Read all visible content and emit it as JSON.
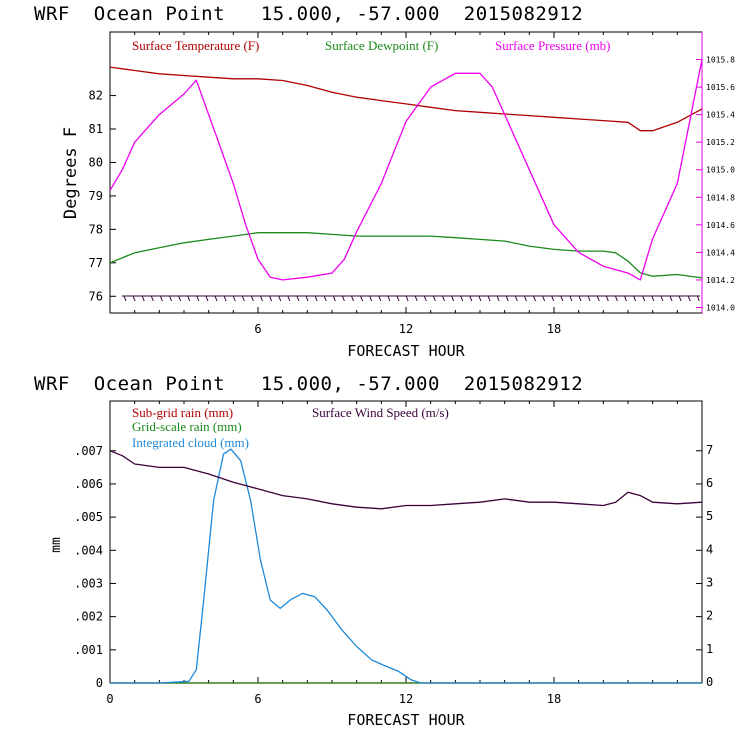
{
  "panels": [
    {
      "title": "WRF  Ocean Point   15.000, -57.000  2015082912"
    },
    {
      "title": "WRF  Ocean Point   15.000, -57.000  2015082912"
    }
  ],
  "chart_data": [
    {
      "type": "line",
      "title": "WRF  Ocean Point   15.000, -57.000  2015082912",
      "xlabel": "FORECAST HOUR",
      "ylabel": "Degrees F",
      "xlim": [
        0,
        24
      ],
      "ylim": [
        75.5,
        83.9
      ],
      "x_ticks": [
        "6",
        "12",
        "18"
      ],
      "y_ticks": [
        "76",
        "77",
        "78",
        "79",
        "80",
        "81",
        "82"
      ],
      "y2lim": [
        1013.96,
        1016.0
      ],
      "y2_ticks": [
        "1014.0",
        "1014.2",
        "1014.4",
        "1014.6",
        "1014.8",
        "1015.0",
        "1015.2",
        "1015.4",
        "1015.6",
        "1015.8"
      ],
      "legend_position": "top",
      "series": [
        {
          "name": "Surface Temperature (F)",
          "color": "#b00000",
          "axis": "left",
          "points": [
            [
              0,
              82.85
            ],
            [
              1,
              82.75
            ],
            [
              2,
              82.65
            ],
            [
              3,
              82.6
            ],
            [
              4,
              82.55
            ],
            [
              5,
              82.5
            ],
            [
              6,
              82.5
            ],
            [
              7,
              82.45
            ],
            [
              8,
              82.3
            ],
            [
              9,
              82.1
            ],
            [
              10,
              81.95
            ],
            [
              11,
              81.85
            ],
            [
              12,
              81.75
            ],
            [
              13,
              81.65
            ],
            [
              14,
              81.55
            ],
            [
              15,
              81.5
            ],
            [
              16,
              81.45
            ],
            [
              17,
              81.4
            ],
            [
              18,
              81.35
            ],
            [
              19,
              81.3
            ],
            [
              20,
              81.25
            ],
            [
              21,
              81.2
            ],
            [
              21.5,
              80.95
            ],
            [
              22,
              80.95
            ],
            [
              23,
              81.2
            ],
            [
              24,
              81.6
            ]
          ]
        },
        {
          "name": "Surface Dewpoint (F)",
          "color": "#1a8a1a",
          "axis": "left",
          "points": [
            [
              0,
              77.0
            ],
            [
              1,
              77.3
            ],
            [
              2,
              77.45
            ],
            [
              3,
              77.6
            ],
            [
              4,
              77.7
            ],
            [
              5,
              77.8
            ],
            [
              6,
              77.9
            ],
            [
              7,
              77.9
            ],
            [
              8,
              77.9
            ],
            [
              9,
              77.85
            ],
            [
              10,
              77.8
            ],
            [
              11,
              77.8
            ],
            [
              12,
              77.8
            ],
            [
              13,
              77.8
            ],
            [
              14,
              77.75
            ],
            [
              15,
              77.7
            ],
            [
              16,
              77.65
            ],
            [
              17,
              77.5
            ],
            [
              18,
              77.4
            ],
            [
              19,
              77.35
            ],
            [
              20,
              77.35
            ],
            [
              20.5,
              77.3
            ],
            [
              21,
              77.05
            ],
            [
              21.5,
              76.7
            ],
            [
              22,
              76.6
            ],
            [
              23,
              76.65
            ],
            [
              24,
              76.55
            ]
          ]
        },
        {
          "name": "Surface Pressure (mb)",
          "color": "#ee00ee",
          "axis": "right",
          "points": [
            [
              0,
              1014.85
            ],
            [
              0.5,
              1015.0
            ],
            [
              1,
              1015.2
            ],
            [
              2,
              1015.4
            ],
            [
              3,
              1015.55
            ],
            [
              3.5,
              1015.65
            ],
            [
              4,
              1015.4
            ],
            [
              4.5,
              1015.15
            ],
            [
              5,
              1014.9
            ],
            [
              5.5,
              1014.6
            ],
            [
              6,
              1014.35
            ],
            [
              6.5,
              1014.22
            ],
            [
              7,
              1014.2
            ],
            [
              8,
              1014.22
            ],
            [
              9,
              1014.25
            ],
            [
              9.5,
              1014.35
            ],
            [
              10,
              1014.55
            ],
            [
              11,
              1014.9
            ],
            [
              12,
              1015.35
            ],
            [
              13,
              1015.6
            ],
            [
              14,
              1015.7
            ],
            [
              15,
              1015.7
            ],
            [
              15.5,
              1015.6
            ],
            [
              16,
              1015.4
            ],
            [
              17,
              1015.0
            ],
            [
              18,
              1014.6
            ],
            [
              19,
              1014.4
            ],
            [
              20,
              1014.3
            ],
            [
              21,
              1014.25
            ],
            [
              21.5,
              1014.2
            ],
            [
              22,
              1014.5
            ],
            [
              23,
              1014.9
            ],
            [
              24,
              1015.8
            ]
          ]
        }
      ],
      "wind_barbs": true
    },
    {
      "type": "line",
      "title": "WRF  Ocean Point   15.000, -57.000  2015082912",
      "xlabel": "FORECAST HOUR",
      "ylabel": "mm",
      "xlim": [
        0,
        24
      ],
      "ylim": [
        0,
        0.0085
      ],
      "x_ticks": [
        "0",
        "6",
        "12",
        "18"
      ],
      "y_ticks": [
        "0",
        ".001",
        ".002",
        ".003",
        ".004",
        ".005",
        ".006",
        ".007"
      ],
      "y2lim": [
        0,
        8.5
      ],
      "y2_ticks": [
        "0",
        "1",
        "2",
        "3",
        "4",
        "5",
        "6",
        "7"
      ],
      "legend_position": "top-left",
      "series": [
        {
          "name": "Sub-grid rain (mm)",
          "color": "#b00000",
          "axis": "left",
          "points": [
            [
              0,
              0
            ],
            [
              24,
              0
            ]
          ]
        },
        {
          "name": "Grid-scale rain (mm)",
          "color": "#1a8a1a",
          "axis": "left",
          "points": [
            [
              0,
              0
            ],
            [
              24,
              0
            ]
          ]
        },
        {
          "name": "Integrated cloud (mm)",
          "color": "#1e88d8",
          "axis": "left",
          "points": [
            [
              0,
              0
            ],
            [
              2,
              0
            ],
            [
              3.2,
              5e-05
            ],
            [
              3.5,
              0.0004
            ],
            [
              3.8,
              0.0025
            ],
            [
              4.2,
              0.0055
            ],
            [
              4.6,
              0.0069
            ],
            [
              4.9,
              0.00705
            ],
            [
              5.3,
              0.0067
            ],
            [
              5.7,
              0.0055
            ],
            [
              6.1,
              0.0037
            ],
            [
              6.5,
              0.0025
            ],
            [
              6.9,
              0.00225
            ],
            [
              7.3,
              0.0025
            ],
            [
              7.8,
              0.0027
            ],
            [
              8.3,
              0.0026
            ],
            [
              8.8,
              0.0022
            ],
            [
              9.4,
              0.0016
            ],
            [
              10,
              0.0011
            ],
            [
              10.6,
              0.0007
            ],
            [
              11.2,
              0.0005
            ],
            [
              11.7,
              0.00035
            ],
            [
              12.2,
              0.0001
            ],
            [
              12.6,
              0.0
            ],
            [
              24,
              0
            ]
          ]
        },
        {
          "name": "Surface Wind Speed (m/s)",
          "color": "#3a003a",
          "axis": "right",
          "points": [
            [
              0,
              7.0
            ],
            [
              0.5,
              6.85
            ],
            [
              1,
              6.6
            ],
            [
              2,
              6.5
            ],
            [
              3,
              6.5
            ],
            [
              4,
              6.3
            ],
            [
              5,
              6.05
            ],
            [
              6,
              5.85
            ],
            [
              7,
              5.65
            ],
            [
              8,
              5.55
            ],
            [
              9,
              5.4
            ],
            [
              10,
              5.3
            ],
            [
              11,
              5.25
            ],
            [
              12,
              5.35
            ],
            [
              13,
              5.35
            ],
            [
              14,
              5.4
            ],
            [
              15,
              5.45
            ],
            [
              16,
              5.55
            ],
            [
              17,
              5.45
            ],
            [
              18,
              5.45
            ],
            [
              19,
              5.4
            ],
            [
              20,
              5.35
            ],
            [
              20.5,
              5.45
            ],
            [
              21,
              5.75
            ],
            [
              21.5,
              5.65
            ],
            [
              22,
              5.45
            ],
            [
              23,
              5.4
            ],
            [
              24,
              5.45
            ]
          ]
        }
      ]
    }
  ]
}
